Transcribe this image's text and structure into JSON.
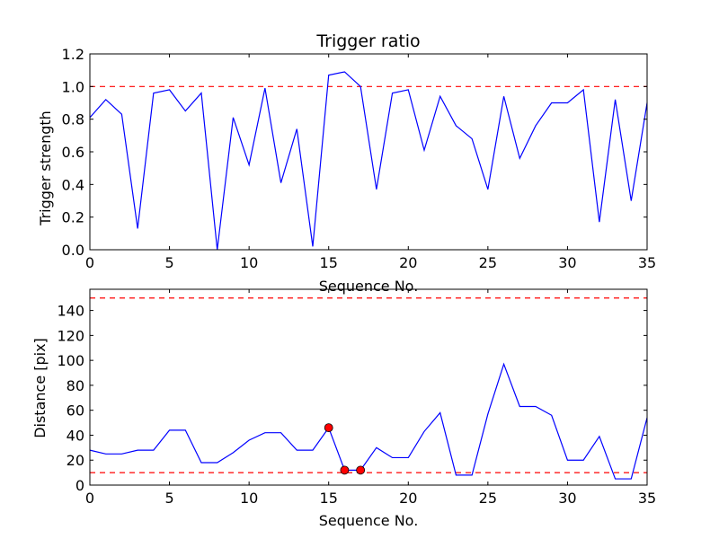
{
  "chart_data": [
    {
      "type": "line",
      "title": "Trigger ratio",
      "xlabel": "Sequence No.",
      "ylabel": "Trigger strength",
      "xlim": [
        0,
        35
      ],
      "ylim": [
        0,
        1.2
      ],
      "xticks": [
        "0",
        "5",
        "10",
        "15",
        "20",
        "25",
        "30",
        "35"
      ],
      "yticks": [
        "0.0",
        "0.2",
        "0.4",
        "0.6",
        "0.8",
        "1.0",
        "1.2"
      ],
      "line_color": "#0000ff",
      "threshold_color": "#ff0000",
      "thresholds": [
        1.0
      ],
      "series": [
        {
          "x": [
            0,
            1,
            2,
            3,
            4,
            5,
            6,
            7,
            8,
            9,
            10,
            11,
            12,
            13,
            14,
            15,
            16,
            17,
            18,
            19,
            20,
            21,
            22,
            23,
            24,
            25,
            26,
            27,
            28,
            29,
            30,
            31,
            32,
            33,
            34,
            35
          ],
          "values": [
            0.81,
            0.92,
            0.83,
            0.13,
            0.96,
            0.98,
            0.85,
            0.96,
            0.0,
            0.81,
            0.52,
            0.99,
            0.41,
            0.74,
            0.02,
            1.07,
            1.09,
            1.0,
            0.37,
            0.96,
            0.98,
            0.61,
            0.94,
            0.76,
            0.68,
            0.37,
            0.94,
            0.56,
            0.76,
            0.9,
            0.9,
            0.98,
            0.17,
            0.92,
            0.3,
            0.9
          ]
        }
      ]
    },
    {
      "type": "line",
      "title": "",
      "xlabel": "Sequence No.",
      "ylabel": "Distance [pix]",
      "xlim": [
        0,
        35
      ],
      "ylim": [
        0,
        157
      ],
      "xticks": [
        "0",
        "5",
        "10",
        "15",
        "20",
        "25",
        "30",
        "35"
      ],
      "yticks": [
        "0",
        "20",
        "40",
        "60",
        "80",
        "100",
        "120",
        "140"
      ],
      "line_color": "#0000ff",
      "threshold_color": "#ff0000",
      "marker_color": "#ff0000",
      "thresholds": [
        150,
        10
      ],
      "series": [
        {
          "x": [
            0,
            1,
            2,
            3,
            4,
            5,
            6,
            7,
            8,
            9,
            10,
            11,
            12,
            13,
            14,
            15,
            16,
            17,
            18,
            19,
            20,
            21,
            22,
            23,
            24,
            25,
            26,
            27,
            28,
            29,
            30,
            31,
            32,
            33,
            34,
            35
          ],
          "values": [
            28,
            25,
            25,
            28,
            28,
            44,
            44,
            18,
            18,
            26,
            36,
            42,
            42,
            28,
            28,
            46,
            12,
            12,
            30,
            22,
            22,
            43,
            58,
            8,
            8,
            57,
            97,
            63,
            63,
            56,
            20,
            20,
            39,
            5,
            5,
            54
          ]
        }
      ],
      "highlighted_points": [
        {
          "x": 15,
          "y": 46
        },
        {
          "x": 16,
          "y": 12
        },
        {
          "x": 17,
          "y": 12
        }
      ]
    }
  ]
}
